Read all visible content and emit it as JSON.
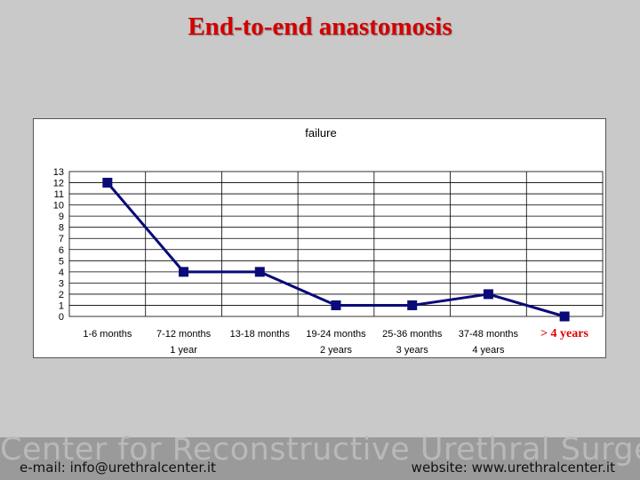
{
  "slide": {
    "title": "End-to-end anastomosis"
  },
  "chart_data": {
    "type": "line",
    "title": "failure",
    "categories": [
      "1-6 months",
      "7-12 months",
      "13-18 months",
      "19-24 months",
      "25-36 months",
      "37-48 months",
      ""
    ],
    "category_sublabels": [
      "",
      "1 year",
      "",
      "2 years",
      "3 years",
      "4 years",
      ""
    ],
    "series": [
      {
        "values": [
          12,
          4,
          4,
          1,
          1,
          2,
          0
        ]
      }
    ],
    "ylim": [
      0,
      13
    ],
    "yticks": [
      0,
      1,
      2,
      3,
      4,
      5,
      6,
      7,
      8,
      9,
      10,
      11,
      12,
      13
    ],
    "grid": true,
    "annotation": "> 4 years",
    "colors": {
      "line": "#0a0a78",
      "marker": "#0a0a78",
      "annotation": "#e00000",
      "grid": "#000000"
    }
  },
  "footer": {
    "watermark": "Center for Reconstructive Urethral Surgery",
    "email": "e-mail: info@urethralcenter.it",
    "website": "website: www.urethralcenter.it"
  }
}
